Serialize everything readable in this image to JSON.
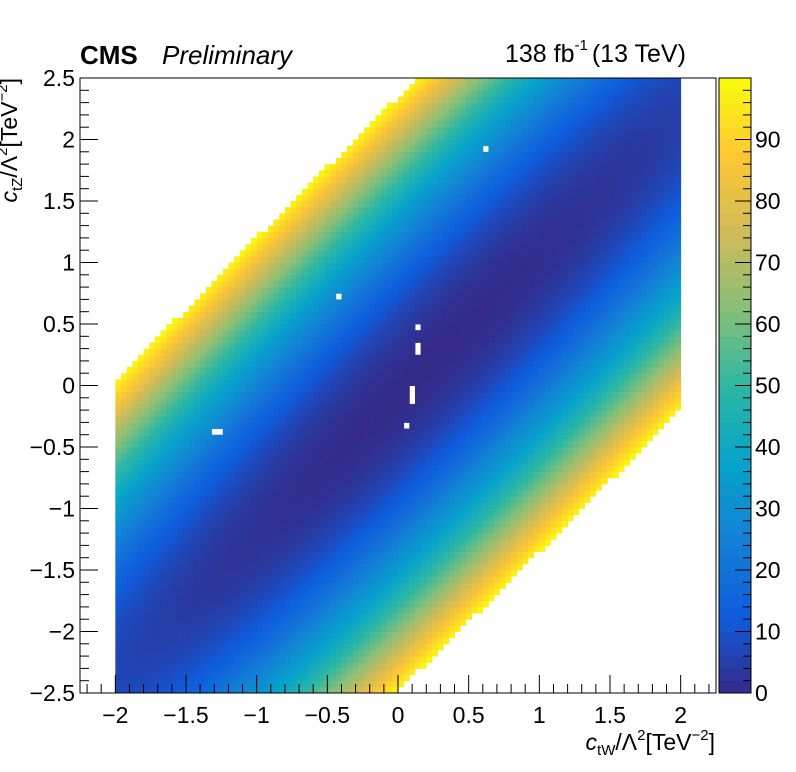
{
  "header": {
    "experiment": "CMS",
    "status": "Preliminary",
    "lumi_value": "138 fb",
    "lumi_exponent": "-1",
    "energy": "(13 TeV)"
  },
  "chart_data": {
    "type": "heatmap",
    "title": "",
    "xlabel": "c_tW/Λ^2[TeV^-2]",
    "ylabel": "c_tZ/Λ^2[TeV^-2]",
    "xlim": [
      -2.25,
      2.25
    ],
    "ylim": [
      -2.5,
      2.5
    ],
    "zlim": [
      0,
      100
    ],
    "x_ticks": [
      -2,
      -1.5,
      -1,
      -0.5,
      0,
      0.5,
      1,
      1.5,
      2
    ],
    "x_tick_labels": [
      "−2",
      "−1.5",
      "−1",
      "−0.5",
      "0",
      "0.5",
      "1",
      "1.5",
      "2"
    ],
    "y_ticks": [
      -2.5,
      -2,
      -1.5,
      -1,
      -0.5,
      0,
      0.5,
      1,
      1.5,
      2,
      2.5
    ],
    "y_tick_labels": [
      "−2.5",
      "−2",
      "−1.5",
      "−1",
      "−0.5",
      "0",
      "0.5",
      "1",
      "1.5",
      "2",
      "2.5"
    ],
    "z_ticks": [
      0,
      10,
      20,
      30,
      40,
      50,
      60,
      70,
      80,
      90
    ],
    "z_tick_labels": [
      "0",
      "10",
      "20",
      "30",
      "40",
      "50",
      "60",
      "70",
      "80",
      "90"
    ],
    "x_bin_range": [
      -2.0,
      2.0
    ],
    "y_bin_range": [
      -2.5,
      2.5
    ],
    "n_bins": [
      100,
      100
    ],
    "model": {
      "description": "profile likelihood scan (-2ΔlnL) filled over a correlated band, empty where the value exceeds the z range",
      "minimum": [
        0.15,
        0.1
      ],
      "band_slope": 1.16,
      "along_scale": 1.25,
      "across_scale": 0.16,
      "max_value": 99
    },
    "empty_points": [
      [
        0.63,
        1.93
      ],
      [
        -0.43,
        0.73
      ],
      [
        -1.28,
        -0.37
      ],
      [
        0.15,
        0.47
      ],
      [
        0.15,
        0.33
      ],
      [
        0.15,
        0.3
      ],
      [
        0.1,
        -0.03
      ],
      [
        0.1,
        -0.1
      ],
      [
        0.1,
        -0.13
      ],
      [
        0.06,
        -0.33
      ]
    ],
    "colormap": "Parula",
    "colors": [
      "#352a87",
      "#0f5cdd",
      "#1481d6",
      "#06a4ca",
      "#2eb7a4",
      "#87bf77",
      "#d1bb59",
      "#fec832",
      "#f9fb0e"
    ],
    "grid": false,
    "legend": "none"
  }
}
